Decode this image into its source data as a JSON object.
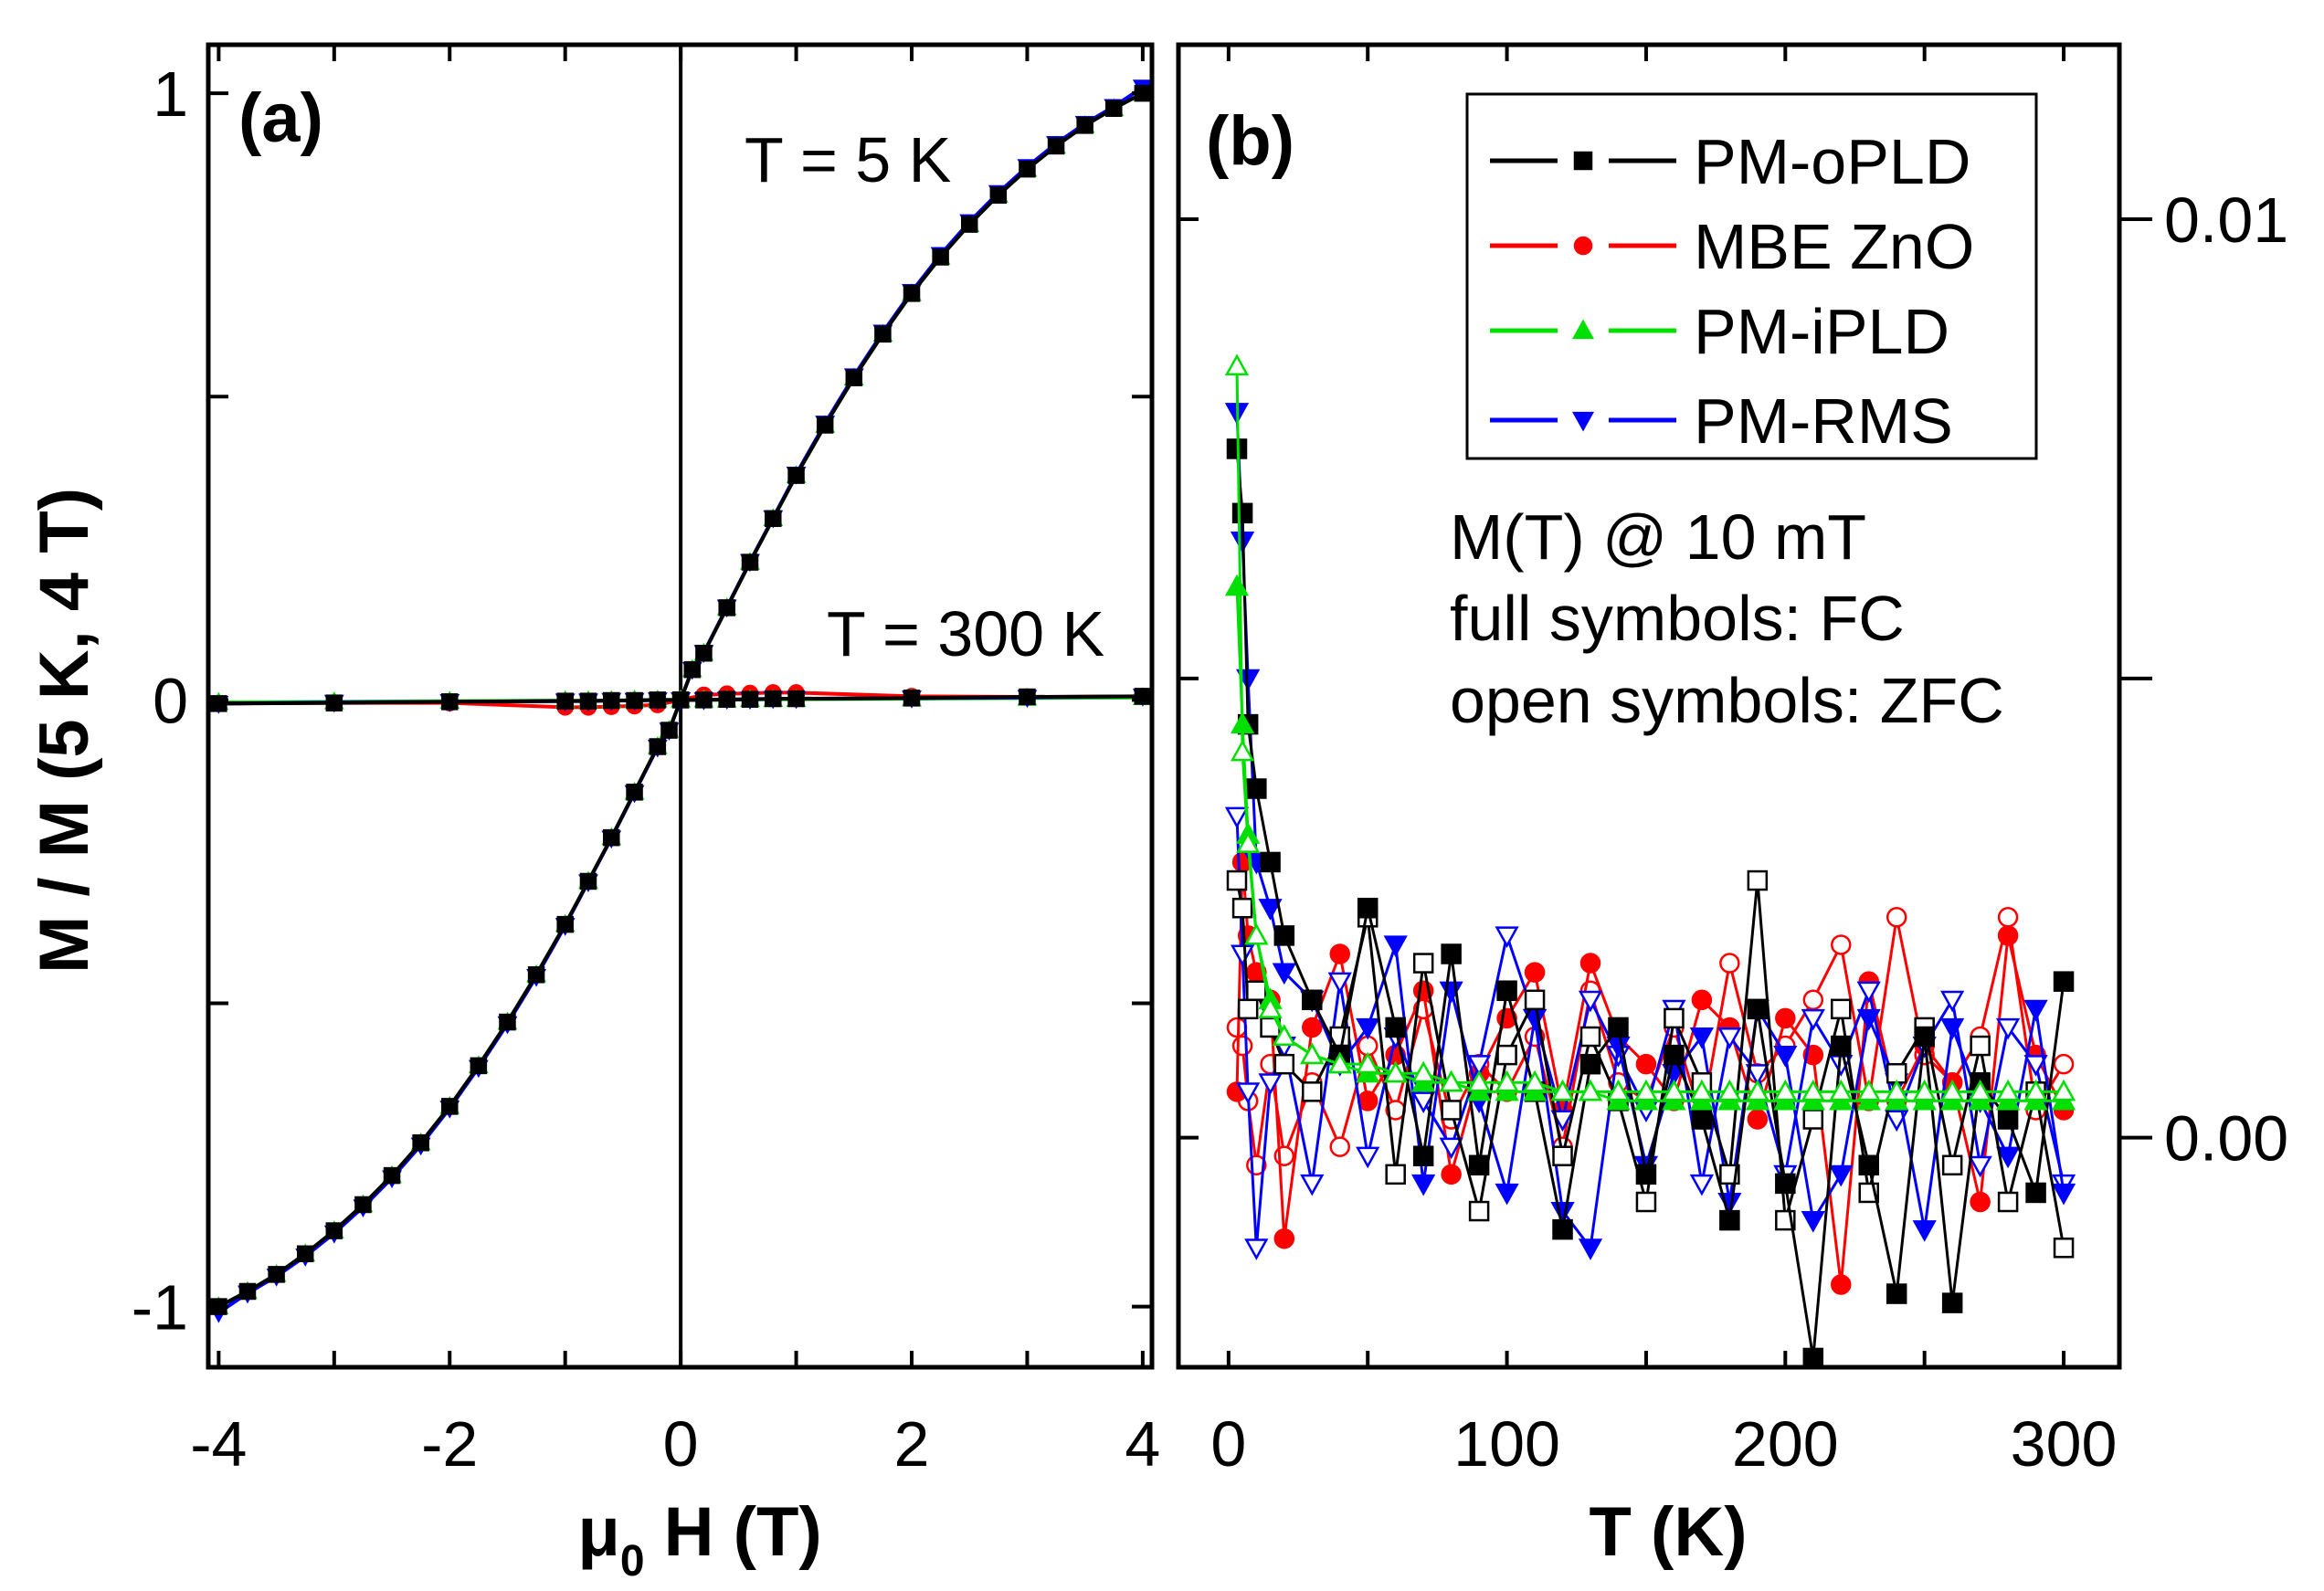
{
  "chart_data": [
    {
      "type": "line",
      "panel_label": "(a)",
      "xlabel_prefix": "μ",
      "xlabel_sub": "0",
      "xlabel_rest": " H (T)",
      "ylabel": "M / M (5 K, 4 T)",
      "xlim": [
        -4.09,
        4.08
      ],
      "ylim": [
        -1.1,
        1.08
      ],
      "xticks": [
        -4,
        -3,
        -2,
        -1,
        0,
        1,
        2,
        3,
        4
      ],
      "xtick_labels": [
        {
          "v": -4,
          "t": "-4"
        },
        {
          "v": -2,
          "t": "-2"
        },
        {
          "v": 0,
          "t": "0"
        },
        {
          "v": 2,
          "t": "2"
        },
        {
          "v": 4,
          "t": "4"
        }
      ],
      "yticks": [
        -1,
        -0.5,
        0,
        0.5,
        1
      ],
      "ytick_labels": [
        {
          "v": 1,
          "t": "1"
        },
        {
          "v": 0,
          "t": "0"
        },
        {
          "v": -1,
          "t": "-1"
        }
      ],
      "annotations": [
        "T = 5 K",
        "T = 300 K"
      ],
      "x_5K": [
        -4,
        -3.75,
        -3.5,
        -3.25,
        -3,
        -2.75,
        -2.5,
        -2.25,
        -2,
        -1.75,
        -1.5,
        -1.25,
        -1,
        -0.8,
        -0.6,
        -0.4,
        -0.2,
        -0.1,
        0,
        0.1,
        0.2,
        0.4,
        0.6,
        0.8,
        1,
        1.25,
        1.5,
        1.75,
        2,
        2.25,
        2.5,
        2.75,
        3,
        3.25,
        3.5,
        3.75,
        4
      ],
      "x_300K": [
        -4,
        -3,
        -2,
        -1,
        -0.8,
        -0.6,
        -0.4,
        -0.2,
        0,
        0.2,
        0.4,
        0.6,
        0.8,
        1,
        2,
        3,
        4
      ],
      "series": [
        {
          "name": "PM-iPLD 5 K",
          "color": "#00e000",
          "marker": "triangle-up",
          "temp": "5K",
          "values": [
            -1,
            -0.975,
            -0.947,
            -0.913,
            -0.875,
            -0.832,
            -0.784,
            -0.73,
            -0.67,
            -0.603,
            -0.531,
            -0.453,
            -0.37,
            -0.299,
            -0.227,
            -0.152,
            -0.077,
            -0.05,
            0,
            0.05,
            0.077,
            0.152,
            0.227,
            0.299,
            0.37,
            0.453,
            0.531,
            0.603,
            0.67,
            0.73,
            0.784,
            0.832,
            0.875,
            0.913,
            0.947,
            0.975,
            1
          ]
        },
        {
          "name": "PM-RMS 5 K",
          "color": "#0000ff",
          "marker": "triangle-down",
          "temp": "5K",
          "values": [
            -1.01,
            -0.978,
            -0.95,
            -0.917,
            -0.879,
            -0.836,
            -0.788,
            -0.734,
            -0.673,
            -0.606,
            -0.534,
            -0.456,
            -0.372,
            -0.3,
            -0.228,
            -0.153,
            -0.078,
            -0.05,
            0,
            0.05,
            0.078,
            0.153,
            0.228,
            0.3,
            0.372,
            0.456,
            0.534,
            0.606,
            0.673,
            0.734,
            0.788,
            0.836,
            0.879,
            0.917,
            0.95,
            0.978,
            1.01
          ]
        },
        {
          "name": "PM-oPLD 5 K",
          "color": "#000000",
          "marker": "square",
          "temp": "5K",
          "values": [
            -1,
            -0.975,
            -0.947,
            -0.913,
            -0.875,
            -0.832,
            -0.784,
            -0.73,
            -0.67,
            -0.603,
            -0.531,
            -0.453,
            -0.37,
            -0.299,
            -0.227,
            -0.152,
            -0.077,
            -0.05,
            0,
            0.05,
            0.077,
            0.152,
            0.227,
            0.299,
            0.37,
            0.453,
            0.531,
            0.603,
            0.67,
            0.73,
            0.784,
            0.832,
            0.875,
            0.913,
            0.947,
            0.975,
            1
          ]
        },
        {
          "name": "MBE ZnO 300 K",
          "color": "#ff0000",
          "marker": "circle",
          "temp": "300K",
          "values": [
            -0.006,
            -0.005,
            -0.005,
            -0.012,
            -0.012,
            -0.011,
            -0.01,
            -0.008,
            0,
            0.008,
            0.01,
            0.011,
            0.012,
            0.012,
            0.006,
            0.005,
            0.006
          ]
        },
        {
          "name": "PM-iPLD 300 K",
          "color": "#00e000",
          "marker": "triangle-up",
          "temp": "300K",
          "values": [
            -0.004,
            -0.003,
            -0.002,
            -0.001,
            -0.001,
            -0.001,
            0,
            0,
            0,
            0,
            0,
            0.001,
            0.001,
            0.001,
            0.002,
            0.003,
            0.004
          ]
        },
        {
          "name": "PM-RMS 300 K",
          "color": "#0000ff",
          "marker": "triangle-down",
          "temp": "300K",
          "values": [
            -0.006,
            -0.004,
            -0.003,
            -0.002,
            -0.002,
            -0.001,
            -0.001,
            0,
            0,
            0,
            0.001,
            0.001,
            0.002,
            0.002,
            0.003,
            0.004,
            0.006
          ]
        },
        {
          "name": "PM-oPLD 300 K",
          "color": "#000000",
          "marker": "square",
          "temp": "300K",
          "values": [
            -0.006,
            -0.005,
            -0.003,
            -0.002,
            -0.002,
            -0.001,
            -0.001,
            0,
            0,
            0,
            0.001,
            0.001,
            0.002,
            0.002,
            0.003,
            0.005,
            0.006
          ]
        }
      ]
    },
    {
      "type": "line",
      "panel_label": "(b)",
      "xlabel": "T (K)",
      "xlim": [
        -18,
        320
      ],
      "ylim": [
        -0.0025,
        0.0119
      ],
      "xticks": [
        0,
        50,
        100,
        150,
        200,
        250,
        300
      ],
      "xtick_labels": [
        {
          "v": 0,
          "t": "0"
        },
        {
          "v": 100,
          "t": "100"
        },
        {
          "v": 200,
          "t": "200"
        },
        {
          "v": 300,
          "t": "300"
        }
      ],
      "yticks": [
        0,
        0.005,
        0.01
      ],
      "ytick_labels": [
        {
          "v": 0.01,
          "t": "0.01"
        },
        {
          "v": 0,
          "t": "0.00"
        }
      ],
      "annotations": [
        "M(T) @ 10 mT",
        "full symbols: FC",
        "open symbols: ZFC"
      ],
      "legend_position": "top-right",
      "legend": [
        {
          "label": "PM-oPLD",
          "color": "#000000",
          "marker": "square"
        },
        {
          "label": "MBE ZnO",
          "color": "#ff0000",
          "marker": "circle"
        },
        {
          "label": "PM-iPLD",
          "color": "#00e000",
          "marker": "triangle-up"
        },
        {
          "label": "PM-RMS",
          "color": "#0000ff",
          "marker": "triangle-down"
        }
      ],
      "x": [
        3,
        5,
        7,
        10,
        15,
        20,
        30,
        40,
        50,
        60,
        70,
        80,
        90,
        100,
        110,
        120,
        130,
        140,
        150,
        160,
        170,
        180,
        190,
        200,
        210,
        220,
        230,
        240,
        250,
        260,
        270,
        280,
        290,
        300
      ],
      "series": [
        {
          "name": "MBE ZnO ZFC",
          "color": "#ff0000",
          "marker": "circle",
          "filled": false,
          "values": [
            0.0012,
            0.001,
            0.0004,
            -0.0003,
            0.0008,
            -0.0002,
            0.0006,
            -0.0001,
            0.001,
            0.0003,
            0.0014,
            0.0002,
            0.0008,
            0.0005,
            0.0011,
            -0.0001,
            0.0016,
            0.0006,
            0.0004,
            0.0012,
            0.0002,
            0.0019,
            0.0007,
            0.001,
            0.0015,
            0.0021,
            0.0004,
            0.0024,
            0.0009,
            0.0006,
            0.0011,
            0.0024,
            0.0003,
            0.0008
          ]
        },
        {
          "name": "MBE ZnO FC",
          "color": "#ff0000",
          "marker": "circle",
          "filled": true,
          "values": [
            0.0005,
            0.003,
            0.0022,
            0.0018,
            0.0015,
            -0.0011,
            0.0012,
            0.002,
            0.0004,
            0.0009,
            0.0016,
            -0.0004,
            0.0007,
            0.0013,
            0.0018,
            0.0003,
            0.0019,
            0.0011,
            0.0008,
            0.0004,
            0.0015,
            0.0012,
            0.0002,
            0.0013,
            0.0009,
            -0.0016,
            0.0017,
            0.0004,
            0.001,
            0.0006,
            -0.0007,
            0.0022,
            0.0009,
            0.0003
          ]
        },
        {
          "name": "PM-RMS ZFC",
          "color": "#0000ff",
          "marker": "triangle-down",
          "filled": false,
          "values": [
            0.0035,
            0.002,
            0.0005,
            -0.0012,
            0.0006,
            0.001,
            -0.0005,
            0.0017,
            -0.0002,
            0.0011,
            0.0004,
            -0.0001,
            0.0008,
            0.0022,
            0.0013,
            0.0002,
            0.0015,
            0.0009,
            0.0003,
            0.0014,
            -0.0005,
            0.0011,
            0.0007,
            -0.0004,
            0.0013,
            0.0008,
            0.0016,
            0.0002,
            0.001,
            0.0015,
            -0.0003,
            0.0012,
            0.0008,
            -0.0005
          ]
        },
        {
          "name": "PM-RMS FC",
          "color": "#0000ff",
          "marker": "triangle-down",
          "filled": true,
          "values": [
            0.0079,
            0.0065,
            0.005,
            0.003,
            0.0025,
            0.0018,
            0.0015,
            0.0008,
            0.0012,
            0.0021,
            -0.0005,
            0.0016,
            0.0004,
            -0.0006,
            0.0013,
            -0.0008,
            -0.0012,
            0.001,
            -0.0003,
            0.0007,
            0.0011,
            -0.0007,
            0.0014,
            0.0009,
            -0.0009,
            -0.0004,
            0.0013,
            0.0006,
            -0.001,
            0.0012,
            0.0004,
            -0.0002,
            0.0014,
            -0.0006
          ]
        },
        {
          "name": "PM-oPLD ZFC",
          "color": "#000000",
          "marker": "square",
          "filled": false,
          "values": [
            0.0028,
            0.0025,
            0.0014,
            0.0016,
            0.0012,
            0.0008,
            0.0005,
            0.0011,
            0.0024,
            -0.0004,
            0.0019,
            0.0003,
            -0.0008,
            0.0009,
            0.0015,
            -0.0002,
            0.0011,
            0.0004,
            -0.0007,
            0.0013,
            0.0006,
            -0.0004,
            0.0028,
            -0.0009,
            0.0002,
            0.0014,
            -0.0006,
            0.0007,
            0.0012,
            -0.0003,
            0.001,
            -0.0007,
            0.0005,
            -0.0012
          ]
        },
        {
          "name": "PM-oPLD FC",
          "color": "#000000",
          "marker": "square",
          "filled": true,
          "values": [
            0.0075,
            0.0068,
            0.0045,
            0.0038,
            0.003,
            0.0022,
            0.0015,
            0.0009,
            0.0025,
            0.0012,
            -0.0002,
            0.002,
            -0.0003,
            0.0016,
            0.0005,
            -0.001,
            0.0008,
            0.0012,
            -0.0004,
            0.0009,
            0.0002,
            -0.0009,
            0.0014,
            -0.0005,
            -0.0024,
            0.001,
            -0.0003,
            -0.0017,
            0.0011,
            -0.0018,
            0.0006,
            0.0002,
            -0.0006,
            0.0017
          ]
        },
        {
          "name": "PM-iPLD FC",
          "color": "#00e000",
          "marker": "triangle-up",
          "filled": true,
          "values": [
            0.006,
            0.0045,
            0.0033,
            0.0022,
            0.0015,
            0.0011,
            0.0009,
            0.0008,
            0.0007,
            0.0007,
            0.0006,
            0.0006,
            0.0005,
            0.0005,
            0.0005,
            0.0005,
            0.0005,
            0.0004,
            0.0004,
            0.0004,
            0.0004,
            0.0004,
            0.0004,
            0.0004,
            0.0004,
            0.0004,
            0.0004,
            0.0004,
            0.0004,
            0.0004,
            0.0004,
            0.0004,
            0.0004,
            0.0004
          ]
        },
        {
          "name": "PM-iPLD ZFC",
          "color": "#00e000",
          "marker": "triangle-up",
          "filled": false,
          "values": [
            0.0084,
            0.0042,
            0.0032,
            0.0022,
            0.0014,
            0.0011,
            0.0009,
            0.0008,
            0.0008,
            0.0007,
            0.0007,
            0.0006,
            0.0006,
            0.0006,
            0.0006,
            0.0005,
            0.0005,
            0.0005,
            0.0005,
            0.0005,
            0.0005,
            0.0005,
            0.0005,
            0.0005,
            0.0005,
            0.0005,
            0.0005,
            0.0005,
            0.0005,
            0.0005,
            0.0005,
            0.0005,
            0.0005,
            0.0005
          ]
        }
      ]
    }
  ]
}
